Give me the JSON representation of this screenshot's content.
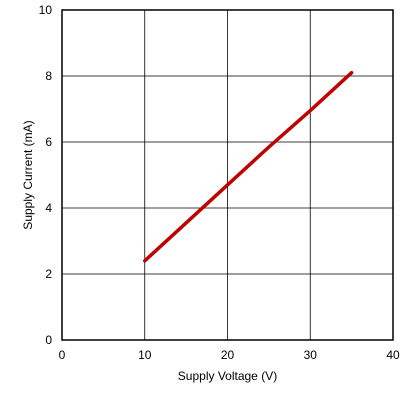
{
  "chart_data": {
    "type": "line",
    "xlabel": "Supply Voltage (V)",
    "ylabel": "Supply Current (mA)",
    "xlim": [
      0,
      40
    ],
    "ylim": [
      0,
      10
    ],
    "x_ticks": [
      0,
      10,
      20,
      30,
      40
    ],
    "y_ticks": [
      0,
      2,
      4,
      6,
      8,
      10
    ],
    "x_tick_labels": [
      "0",
      "10",
      "20",
      "30",
      "40"
    ],
    "y_tick_labels": [
      "0",
      "2",
      "4",
      "6",
      "8",
      "10"
    ],
    "grid": true,
    "legend": "none",
    "series": [
      {
        "color": "#c00000",
        "x": [
          10,
          15,
          20,
          25,
          30,
          35
        ],
        "y": [
          2.4,
          3.55,
          4.7,
          5.85,
          6.95,
          8.1
        ]
      }
    ]
  }
}
